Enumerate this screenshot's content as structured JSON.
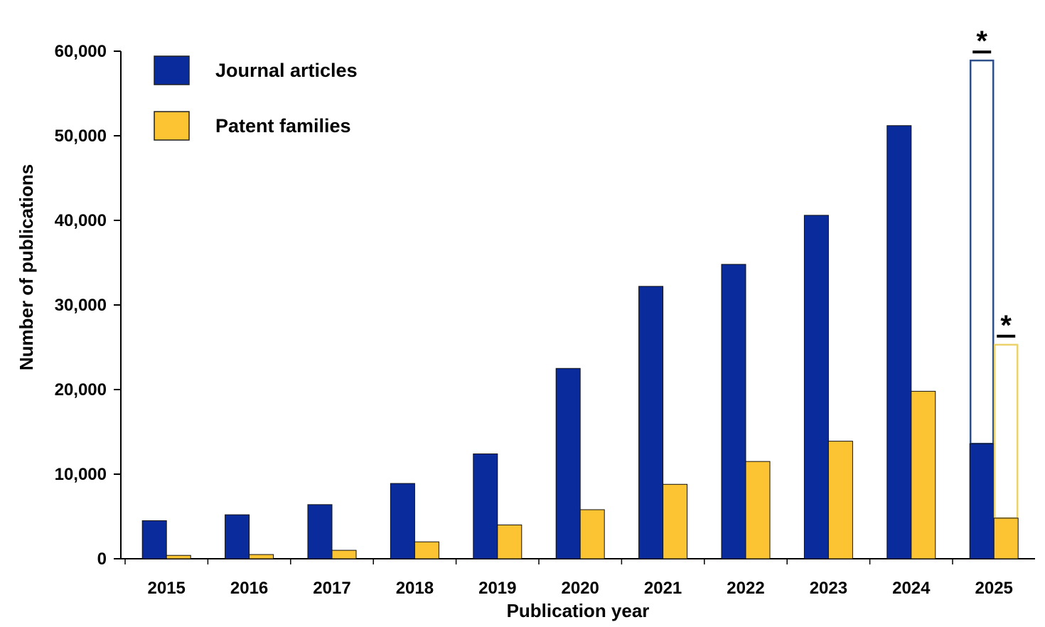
{
  "chart_data": {
    "type": "bar",
    "xlabel": "Publication year",
    "ylabel": "Number of publications",
    "ylim": [
      0,
      60000
    ],
    "yticks": [
      "0",
      "10,000",
      "20,000",
      "30,000",
      "40,000",
      "50,000",
      "60,000"
    ],
    "categories": [
      "2015",
      "2016",
      "2017",
      "2018",
      "2019",
      "2020",
      "2021",
      "2022",
      "2023",
      "2024",
      "2025"
    ],
    "series": [
      {
        "name": "Journal articles",
        "color": "#0a2b9b",
        "values": [
          4500,
          5200,
          6400,
          8900,
          12400,
          22500,
          32200,
          34800,
          40600,
          51200,
          13600
        ],
        "projected_total_2025": 58900
      },
      {
        "name": "Patent families",
        "color": "#fcc332",
        "values": [
          400,
          500,
          1000,
          2000,
          4000,
          5800,
          8800,
          11500,
          13900,
          19800,
          4800
        ],
        "projected_total_2025": 25300
      }
    ],
    "projection_marker": "*",
    "grid": false,
    "legend_position": "top-left"
  }
}
